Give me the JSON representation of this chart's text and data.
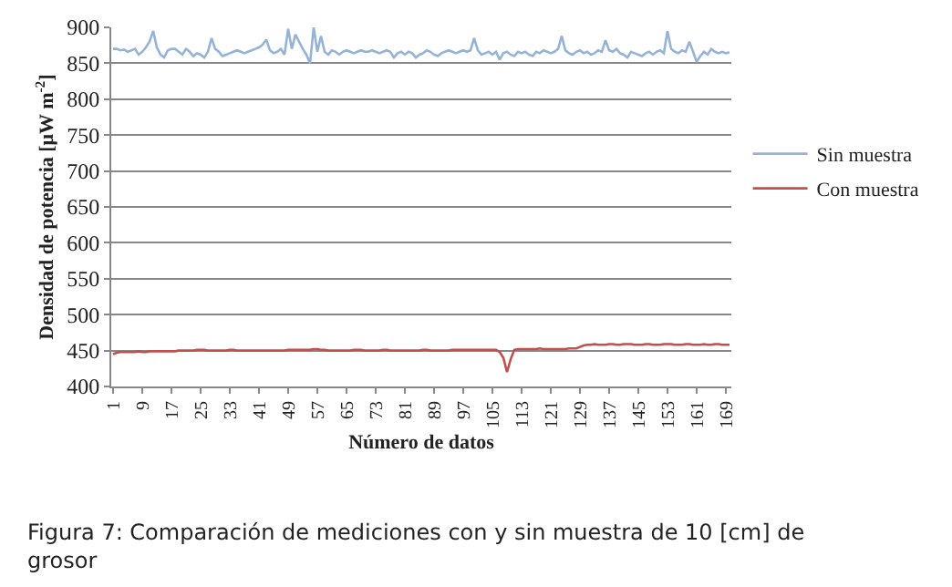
{
  "chart_data": {
    "type": "line",
    "xlabel": "Número de datos",
    "ylabel": "Densidad de potencia [μW m$^{-2}$]",
    "categories": [
      "1",
      null,
      null,
      null,
      null,
      null,
      null,
      null,
      "9",
      null,
      null,
      null,
      null,
      null,
      null,
      null,
      "17",
      null,
      null,
      null,
      null,
      null,
      null,
      null,
      "25",
      null,
      null,
      null,
      null,
      null,
      null,
      null,
      "33",
      null,
      null,
      null,
      null,
      null,
      null,
      null,
      "41",
      null,
      null,
      null,
      null,
      null,
      null,
      null,
      "49",
      null,
      null,
      null,
      null,
      null,
      null,
      null,
      "57",
      null,
      null,
      null,
      null,
      null,
      null,
      null,
      "65",
      null,
      null,
      null,
      null,
      null,
      null,
      null,
      "73",
      null,
      null,
      null,
      null,
      null,
      null,
      null,
      "81",
      null,
      null,
      null,
      null,
      null,
      null,
      null,
      "89",
      null,
      null,
      null,
      null,
      null,
      null,
      null,
      "97",
      null,
      null,
      null,
      null,
      null,
      null,
      null,
      "105",
      null,
      null,
      null,
      null,
      null,
      null,
      null,
      "113",
      null,
      null,
      null,
      null,
      null,
      null,
      null,
      "121",
      null,
      null,
      null,
      null,
      null,
      null,
      null,
      "129",
      null,
      null,
      null,
      null,
      null,
      null,
      null,
      "137",
      null,
      null,
      null,
      null,
      null,
      null,
      null,
      "145",
      null,
      null,
      null,
      null,
      null,
      null,
      null,
      "153",
      null,
      null,
      null,
      null,
      null,
      null,
      null,
      "161",
      null,
      null,
      null,
      null,
      null,
      null,
      null,
      "169",
      null
    ],
    "series": [
      {
        "name": "Sin muestra",
        "color": "#95b3d7",
        "values": [
          870,
          870,
          868,
          869,
          866,
          868,
          870,
          862,
          866,
          872,
          880,
          895,
          872,
          862,
          858,
          868,
          870,
          870,
          866,
          862,
          870,
          866,
          860,
          864,
          862,
          858,
          866,
          885,
          870,
          866,
          860,
          862,
          864,
          866,
          868,
          866,
          864,
          866,
          868,
          870,
          872,
          876,
          883,
          868,
          864,
          866,
          870,
          862,
          898,
          870,
          890,
          880,
          870,
          862,
          850,
          900,
          866,
          888,
          866,
          862,
          868,
          866,
          862,
          866,
          868,
          866,
          864,
          866,
          868,
          866,
          866,
          868,
          866,
          864,
          866,
          868,
          866,
          858,
          864,
          866,
          862,
          866,
          864,
          858,
          862,
          864,
          868,
          866,
          862,
          860,
          864,
          866,
          868,
          866,
          864,
          866,
          868,
          866,
          868,
          885,
          868,
          862,
          864,
          866,
          862,
          866,
          855,
          864,
          866,
          862,
          860,
          866,
          864,
          866,
          862,
          860,
          866,
          864,
          868,
          866,
          864,
          866,
          870,
          888,
          868,
          864,
          862,
          866,
          868,
          864,
          866,
          862,
          864,
          868,
          866,
          882,
          868,
          866,
          870,
          864,
          862,
          858,
          866,
          864,
          862,
          860,
          864,
          866,
          862,
          866,
          868,
          864,
          895,
          870,
          866,
          864,
          868,
          866,
          880,
          866,
          852,
          860,
          866,
          862,
          870,
          866,
          864,
          866,
          864,
          865
        ]
      },
      {
        "name": "Con muestra",
        "color": "#c0504d",
        "values": [
          445,
          447,
          448,
          448,
          448,
          448,
          448,
          449,
          448,
          448,
          449,
          449,
          449,
          449,
          449,
          449,
          449,
          449,
          450,
          450,
          450,
          450,
          450,
          451,
          451,
          451,
          450,
          450,
          450,
          450,
          450,
          450,
          451,
          451,
          450,
          450,
          450,
          450,
          450,
          450,
          450,
          450,
          450,
          450,
          450,
          450,
          450,
          450,
          451,
          451,
          451,
          451,
          451,
          451,
          451,
          452,
          452,
          451,
          451,
          450,
          450,
          450,
          450,
          450,
          450,
          450,
          451,
          451,
          451,
          450,
          450,
          450,
          450,
          450,
          451,
          451,
          450,
          450,
          450,
          450,
          450,
          450,
          450,
          450,
          450,
          451,
          451,
          450,
          450,
          450,
          450,
          450,
          450,
          451,
          451,
          451,
          451,
          451,
          451,
          451,
          451,
          451,
          451,
          451,
          451,
          451,
          448,
          440,
          420,
          438,
          451,
          452,
          452,
          452,
          452,
          452,
          452,
          453,
          452,
          452,
          452,
          452,
          452,
          452,
          452,
          453,
          453,
          453,
          455,
          457,
          458,
          458,
          459,
          458,
          458,
          458,
          459,
          459,
          458,
          458,
          459,
          459,
          459,
          458,
          458,
          458,
          459,
          459,
          458,
          458,
          458,
          459,
          459,
          459,
          458,
          458,
          458,
          459,
          459,
          458,
          458,
          458,
          459,
          458,
          458,
          459,
          459,
          458,
          458,
          458
        ]
      }
    ],
    "ylim": [
      400,
      900
    ],
    "yticks": [
      400,
      450,
      500,
      550,
      600,
      650,
      700,
      750,
      800,
      850,
      900
    ],
    "grid": "y",
    "legend": "right",
    "marker": "none",
    "line_style": "solid",
    "annotations": [
      "Figura 7: Comparación de mediciones con y sin muestra de 10 [cm] de grosor"
    ]
  }
}
